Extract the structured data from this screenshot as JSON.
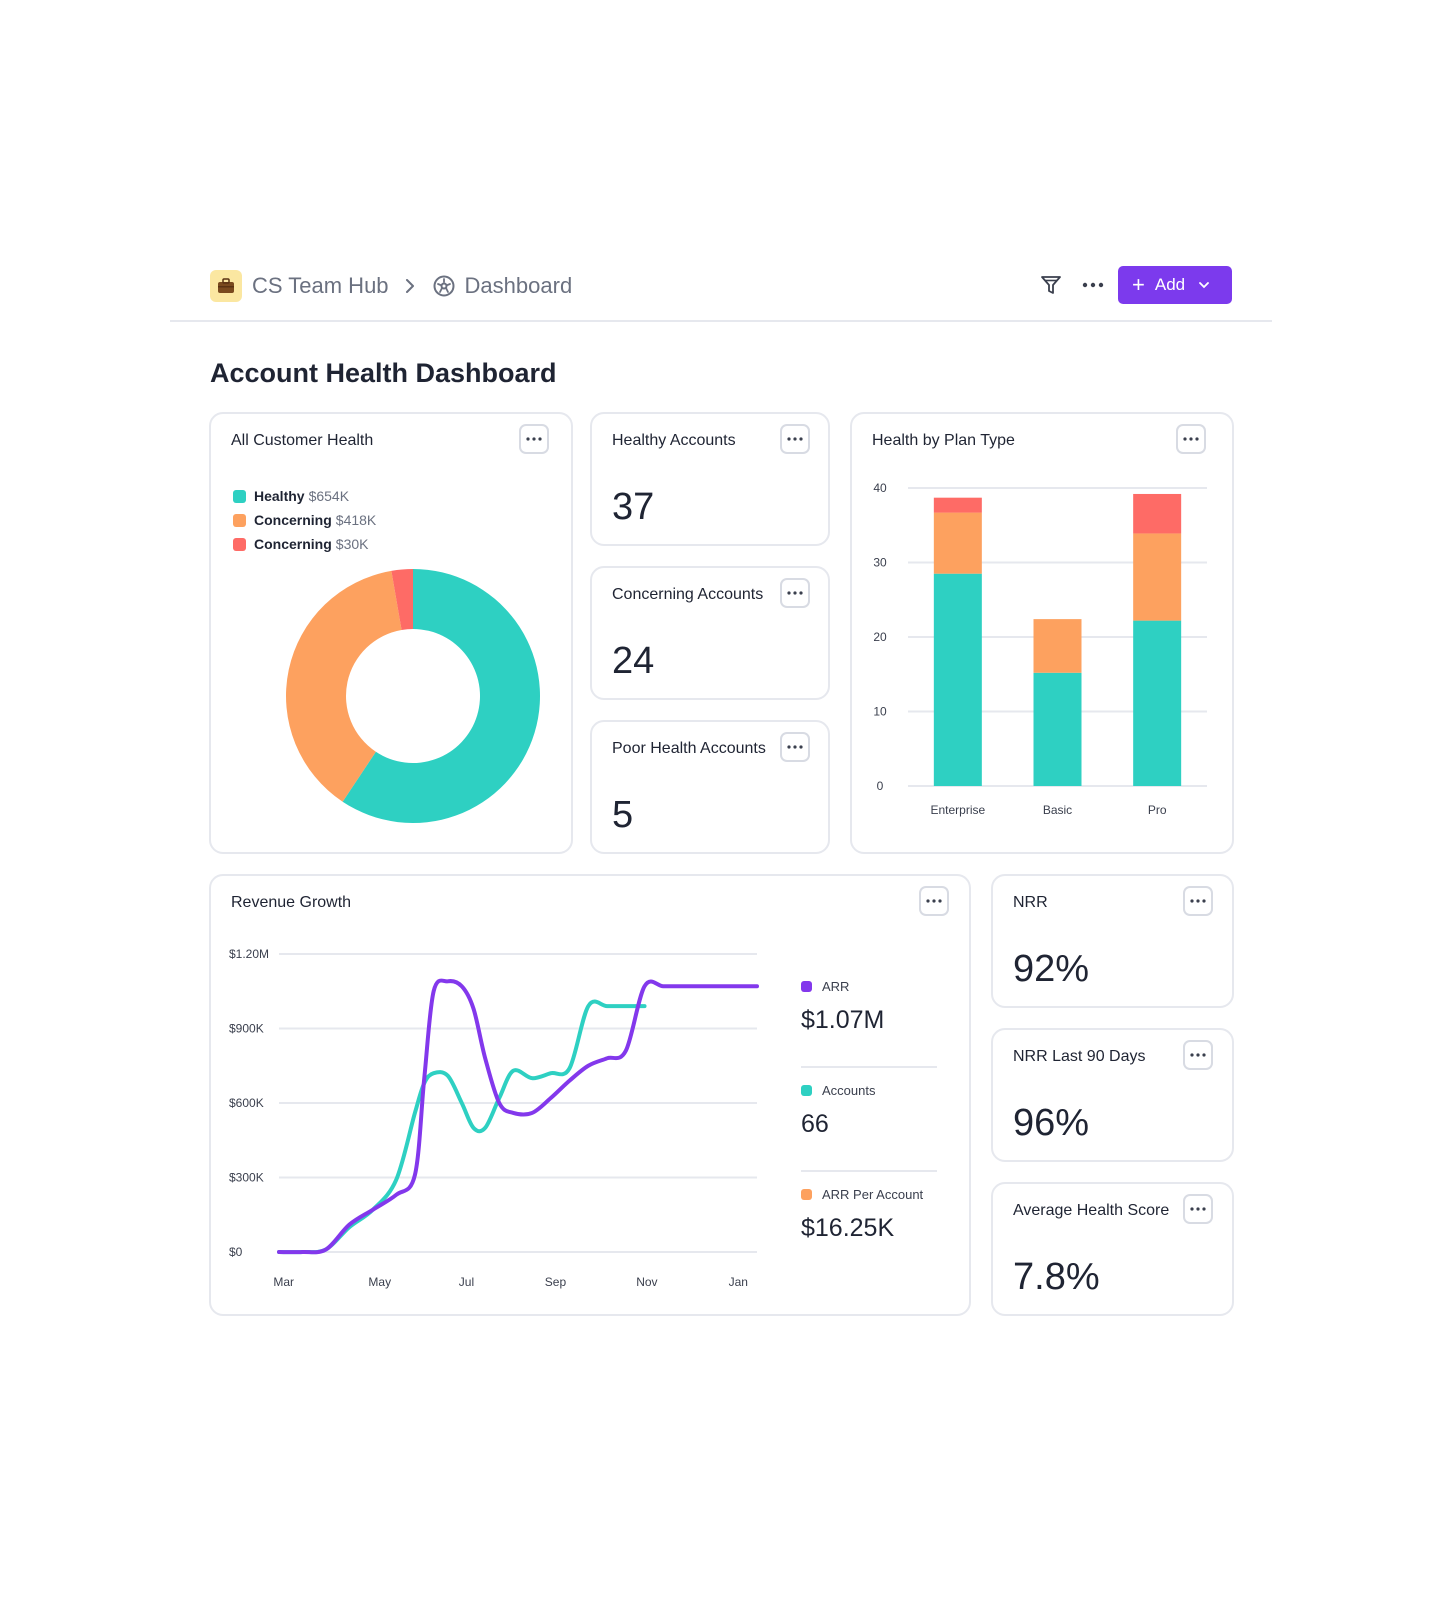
{
  "header": {
    "workspace": "CS Team Hub",
    "page": "Dashboard",
    "add_label": "Add",
    "add_plus": "+"
  },
  "page_title": "Account Health Dashboard",
  "colors": {
    "healthy": "#2ed0c2",
    "concerning": "#fda15f",
    "poor": "#fe6b66",
    "arr": "#8338ec",
    "accent": "#7c3aed"
  },
  "customer_health": {
    "title": "All Customer Health",
    "legend": [
      {
        "label": "Healthy",
        "value": "$654K",
        "color": "#2ed0c2"
      },
      {
        "label": "Concerning",
        "value": "$418K",
        "color": "#fda15f"
      },
      {
        "label": "Concerning",
        "value": "$30K",
        "color": "#fe6b66"
      }
    ]
  },
  "metrics": {
    "healthy": {
      "title": "Healthy Accounts",
      "value": "37"
    },
    "concerning": {
      "title": "Concerning Accounts",
      "value": "24"
    },
    "poor": {
      "title": "Poor Health Accounts",
      "value": "5"
    },
    "nrr": {
      "title": "NRR",
      "value": "92%"
    },
    "nrr90": {
      "title": "NRR Last 90 Days",
      "value": "96%"
    },
    "avg_health": {
      "title": "Average Health Score",
      "value": "7.8%"
    }
  },
  "plan_chart": {
    "title": "Health by Plan Type"
  },
  "revenue": {
    "title": "Revenue Growth",
    "legend": [
      {
        "label": "ARR",
        "value": "$1.07M",
        "color": "#8338ec"
      },
      {
        "label": "Accounts",
        "value": "66",
        "color": "#2ed0c2"
      },
      {
        "label": "ARR Per Account",
        "value": "$16.25K",
        "color": "#fda15f"
      }
    ]
  },
  "chart_data": [
    {
      "type": "pie",
      "donut": true,
      "categories": [
        "Healthy",
        "Concerning",
        "Concerning"
      ],
      "values": [
        654,
        418,
        30
      ],
      "colors": [
        "#2ed0c2",
        "#fda15f",
        "#fe6b66"
      ]
    },
    {
      "type": "bar",
      "stacked": true,
      "categories": [
        "Enterprise",
        "Basic",
        "Pro"
      ],
      "series": [
        {
          "values": [
            28.5,
            15.2,
            22.2
          ],
          "color": "#2ed0c2"
        },
        {
          "values": [
            8.2,
            7.2,
            11.7
          ],
          "color": "#fda15f"
        },
        {
          "values": [
            2.0,
            0,
            5.3
          ],
          "color": "#fe6b66"
        }
      ],
      "ylim": [
        0,
        40
      ],
      "yticks": [
        "0",
        "10",
        "20",
        "30",
        "40"
      ],
      "grid": true
    },
    {
      "type": "line",
      "x_tick_labels": [
        "Mar",
        "May",
        "Jul",
        "Sep",
        "Nov",
        "Jan"
      ],
      "y_tick_labels": [
        "$0",
        "$300K",
        "$600K",
        "$900K",
        "$1.20M"
      ],
      "ylim": [
        0,
        1200000
      ],
      "grid": true,
      "series": [
        {
          "color": "#8338ec",
          "x": [
            0,
            0.5,
            1,
            1.5,
            2,
            2.5,
            2.9,
            3.1,
            3.3,
            3.6,
            3.9,
            4.15,
            4.4,
            4.7,
            5,
            5.4,
            5.8,
            6.2,
            6.6,
            7.0,
            7.4,
            7.8,
            8.2,
            8.6,
            9.0,
            9.4,
            9.8,
            10.2
          ],
          "y": [
            0,
            0,
            10000,
            110000,
            170000,
            230000,
            310000,
            700000,
            1050000,
            1090000,
            1070000,
            980000,
            780000,
            600000,
            560000,
            560000,
            620000,
            690000,
            750000,
            780000,
            810000,
            1070000,
            1070000,
            1070000,
            1070000,
            1070000,
            1070000,
            1070000
          ]
        },
        {
          "color": "#2ed0c2",
          "x": [
            0,
            0.5,
            1,
            1.5,
            2,
            2.5,
            2.9,
            3.1,
            3.3,
            3.6,
            3.9,
            4.15,
            4.4,
            4.7,
            5,
            5.4,
            5.8,
            6.2,
            6.6,
            7.0,
            7.4,
            7.8
          ],
          "y": [
            0,
            0,
            10000,
            100000,
            170000,
            290000,
            560000,
            680000,
            720000,
            710000,
            600000,
            500000,
            500000,
            620000,
            730000,
            700000,
            720000,
            740000,
            990000,
            990000,
            990000,
            990000
          ]
        }
      ]
    }
  ]
}
